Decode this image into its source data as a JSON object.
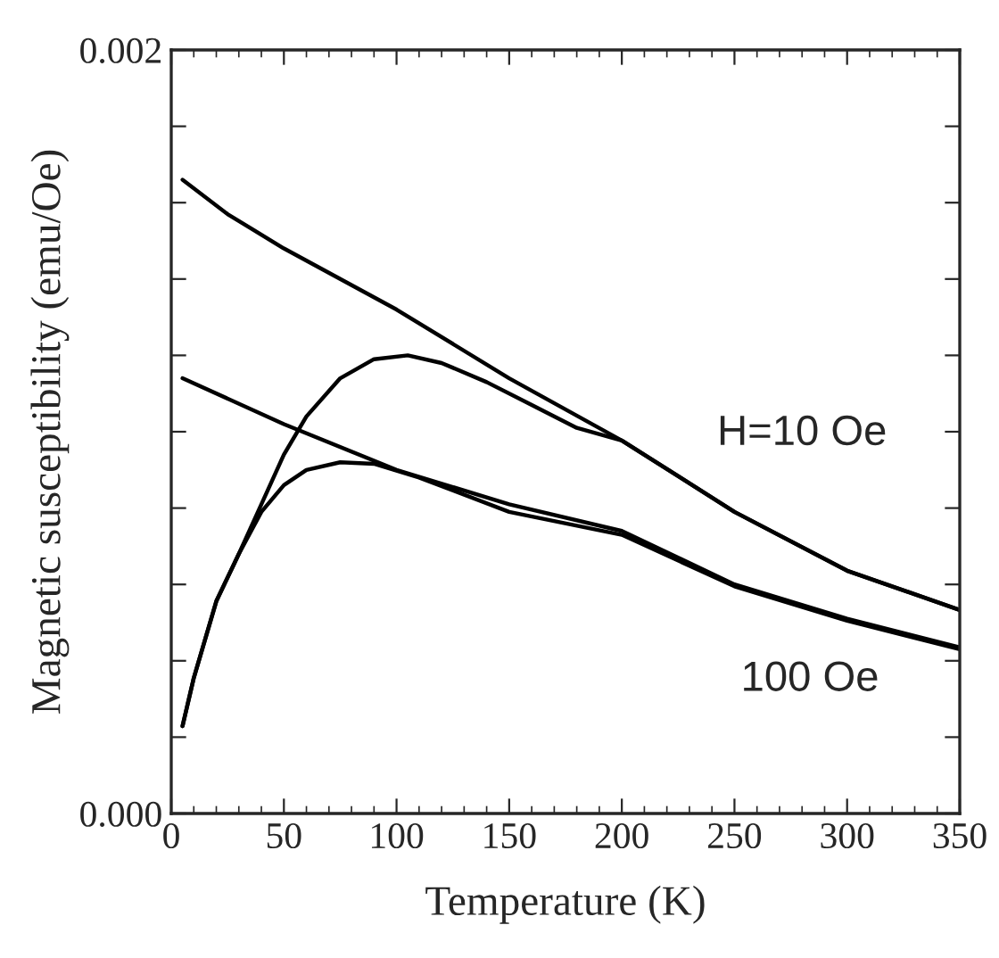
{
  "chart_data": {
    "type": "line",
    "xlabel": "Temperature (K)",
    "ylabel": "Magnetic susceptibility (emu/Oe)",
    "xlim": [
      0,
      350
    ],
    "xticks": [
      0,
      50,
      100,
      150,
      200,
      250,
      300,
      350
    ],
    "ylim": [
      0,
      0.002
    ],
    "yticks": [
      {
        "value": 0,
        "label": "0.000"
      },
      {
        "value": 0.0002,
        "label": null
      },
      {
        "value": 0.0004,
        "label": null
      },
      {
        "value": 0.0006,
        "label": null
      },
      {
        "value": 0.0008,
        "label": null
      },
      {
        "value": 0.001,
        "label": null
      },
      {
        "value": 0.0012,
        "label": null
      },
      {
        "value": 0.0014,
        "label": null
      },
      {
        "value": 0.0016,
        "label": null
      },
      {
        "value": 0.0018,
        "label": null
      },
      {
        "value": 0.002,
        "label": "0.002"
      }
    ],
    "grid": false,
    "legend": false,
    "marker": "none",
    "line_style": "solid",
    "series": [
      {
        "color": "#000000",
        "x": [
          5,
          25,
          50,
          100,
          150,
          200,
          250,
          300,
          350
        ],
        "values": [
          0.00166,
          0.00157,
          0.00148,
          0.00132,
          0.00114,
          0.000977,
          0.00079,
          0.000636,
          0.000533
        ]
      },
      {
        "color": "#000000",
        "x": [
          5,
          10,
          20,
          30,
          40,
          50,
          60,
          75,
          90,
          105,
          120,
          140,
          160,
          180,
          200,
          250,
          300,
          350
        ],
        "values": [
          0.000229,
          0.000355,
          0.000556,
          0.00068,
          0.00081,
          0.00094,
          0.00104,
          0.00114,
          0.00119,
          0.0012,
          0.00118,
          0.00113,
          0.00107,
          0.00101,
          0.000977,
          0.00079,
          0.000636,
          0.000533
        ]
      },
      {
        "color": "#000000",
        "x": [
          5,
          50,
          100,
          150,
          200,
          250,
          300,
          350
        ],
        "values": [
          0.00114,
          0.00102,
          0.0009,
          0.00081,
          0.00074,
          0.0006,
          0.00051,
          0.000435
        ]
      },
      {
        "color": "#000000",
        "x": [
          5,
          10,
          20,
          30,
          40,
          50,
          60,
          75,
          90,
          110,
          150,
          200,
          250,
          300,
          350
        ],
        "values": [
          0.000229,
          0.000355,
          0.000556,
          0.00068,
          0.00079,
          0.00086,
          0.0009,
          0.00092,
          0.000916,
          0.00088,
          0.00079,
          0.00073,
          0.000595,
          0.000505,
          0.00043
        ]
      }
    ],
    "annotations": [
      "H=10 Oe",
      "100 Oe"
    ]
  }
}
